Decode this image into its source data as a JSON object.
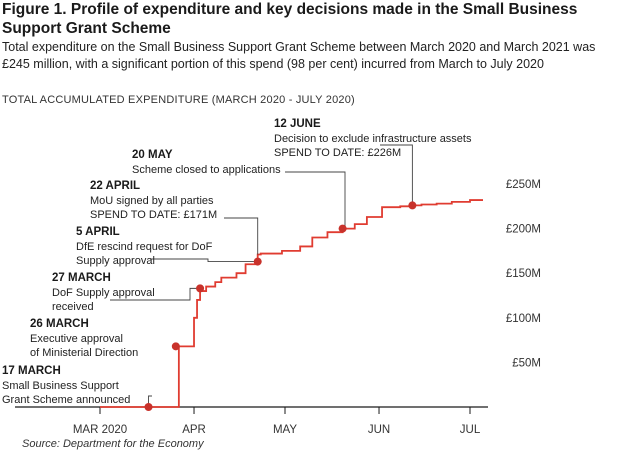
{
  "title": "Figure 1. Profile of expenditure and key decisions made in the Small Business Support Grant Scheme",
  "subtitle": "Total expenditure on the Small Business Support Grant Scheme between March 2020 and March 2021 was £245 million, with a significant portion of this spend (98 per cent) incurred from March to July 2020",
  "chart_label": "TOTAL ACCUMULATED EXPENDITURE (MARCH 2020 - JULY 2020)",
  "source": "Source: Department for the Economy",
  "chart_data": {
    "type": "line",
    "title": "TOTAL ACCUMULATED EXPENDITURE (MARCH 2020 - JULY 2020)",
    "xlabel": "",
    "ylabel": "",
    "x_ticks": [
      "MAR 2020",
      "APR",
      "MAY",
      "JUN",
      "JUL"
    ],
    "y_ticks": [
      "£50M",
      "£100M",
      "£150M",
      "£200M",
      "£250M"
    ],
    "ylim": [
      0,
      250
    ],
    "xlim": [
      "2020-03-01",
      "2020-07-01"
    ],
    "grid": false,
    "line_color": "#e03c31",
    "marker_color": "#c8322b",
    "series": [
      {
        "x": [
          "2020-03-01",
          "2020-03-26",
          "2020-03-27",
          "2020-03-28",
          "2020-04-01",
          "2020-04-02",
          "2020-04-03",
          "2020-04-05",
          "2020-04-08",
          "2020-04-10",
          "2020-04-15",
          "2020-04-18",
          "2020-04-22",
          "2020-04-23",
          "2020-04-30",
          "2020-05-06",
          "2020-05-10",
          "2020-05-15",
          "2020-05-20",
          "2020-05-24",
          "2020-05-28",
          "2020-06-02",
          "2020-06-08",
          "2020-06-12",
          "2020-06-15",
          "2020-06-20",
          "2020-06-25",
          "2020-07-01"
        ],
        "y": [
          0,
          0,
          68,
          68,
          100,
          120,
          130,
          135,
          140,
          145,
          150,
          160,
          171,
          172,
          175,
          180,
          190,
          196,
          200,
          205,
          213,
          224,
          225,
          226,
          227,
          228,
          230,
          232
        ]
      }
    ],
    "events": [
      {
        "date": "2020-03-17",
        "value": 0,
        "heading": "17 MARCH",
        "lines": [
          "Small Business Support",
          "Grant Scheme announced"
        ]
      },
      {
        "date": "2020-03-26",
        "value": 68,
        "heading": "26 MARCH",
        "lines": [
          "Executive approval",
          "of Ministerial Direction"
        ]
      },
      {
        "date": "2020-04-03",
        "value": 133,
        "heading": "27 MARCH",
        "lines": [
          "DoF Supply approval",
          "received"
        ]
      },
      {
        "date": "2020-04-22",
        "value": 163,
        "heading": "5 APRIL",
        "lines": [
          "DfE rescind request for DoF",
          "Supply approval"
        ]
      },
      {
        "date": "2020-04-22",
        "value": 171,
        "heading": "22 APRIL",
        "lines": [
          "MoU signed by all parties",
          "SPEND TO DATE: £171M"
        ]
      },
      {
        "date": "2020-05-20",
        "value": 200,
        "heading": "20 MAY",
        "lines": [
          "Scheme closed to applications"
        ]
      },
      {
        "date": "2020-06-12",
        "value": 226,
        "heading": "12 JUNE",
        "lines": [
          "Decision to exclude infrastructure assets",
          "SPEND TO DATE: £226M"
        ]
      }
    ]
  }
}
